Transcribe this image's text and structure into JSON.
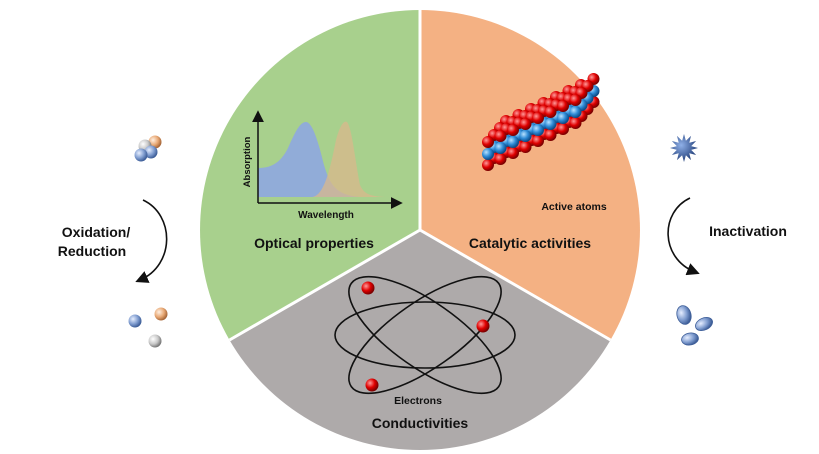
{
  "left_cycle": {
    "label_line1": "Oxidation/",
    "label_line2": "Reduction",
    "icon_top": "clustered-spheres-icon",
    "icon_bottom": "dispersed-spheres-icon"
  },
  "right_cycle": {
    "label": "Inactivation",
    "icon_top": "spiky-virus-icon",
    "icon_bottom": "inactivated-particles-icon"
  },
  "sectors": {
    "optical": {
      "label": "Optical properties",
      "color": "#a8d08d",
      "graph": {
        "ylabel": "Absorption",
        "xlabel": "Wavelength"
      }
    },
    "catalytic": {
      "label": "Catalytic activities",
      "color": "#f4b183",
      "sublabel": "Active atoms"
    },
    "conductive": {
      "label": "Conductivities",
      "color": "#aeaaaa",
      "sublabel": "Electrons"
    }
  },
  "colors": {
    "peak_blue": "#8faadc",
    "peak_tan": "#d9b88c",
    "atom_red": "#e00000",
    "atom_blue": "#2e8bd6",
    "sphere_blue": "#7f9ccf",
    "sphere_orange": "#e8a874",
    "sphere_grey": "#c8c8c8",
    "virus": "#3b5a9a"
  }
}
